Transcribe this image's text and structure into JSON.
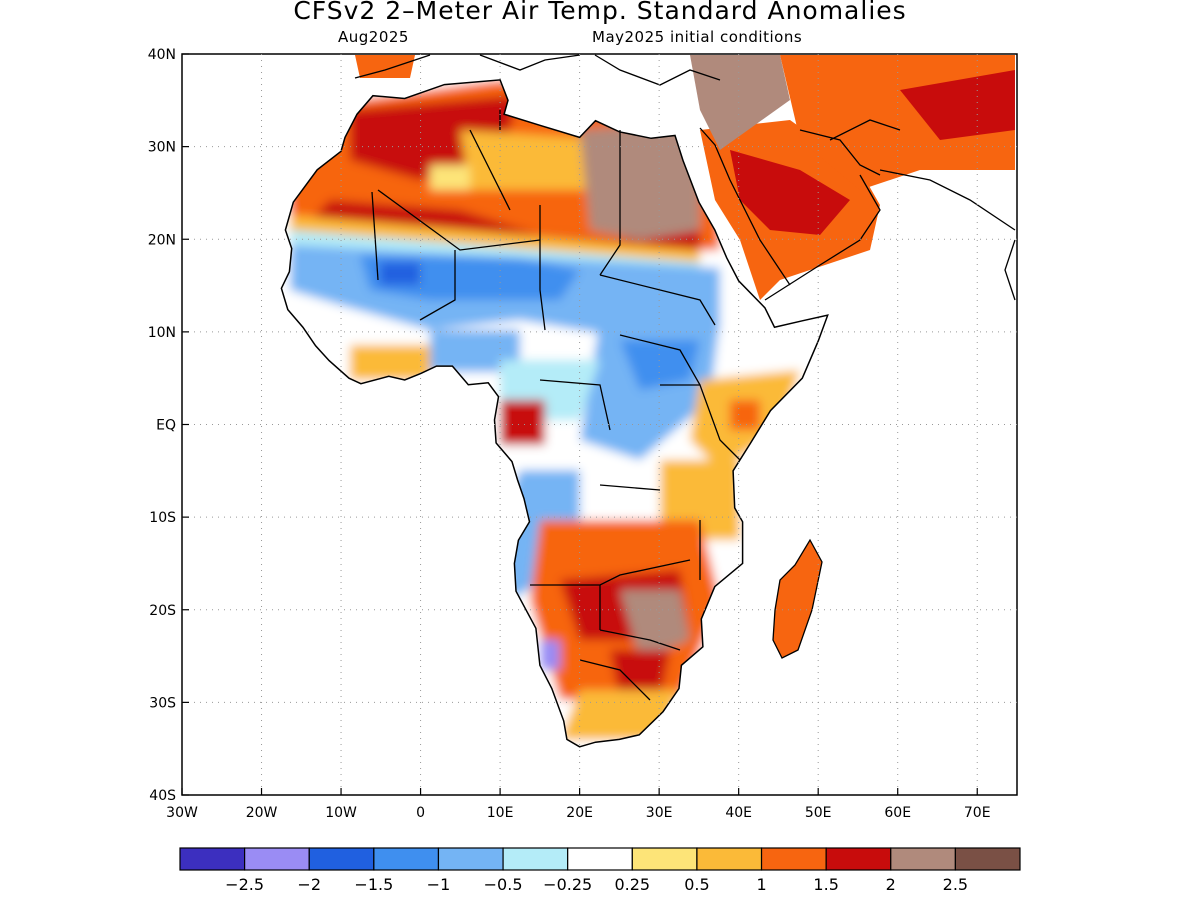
{
  "header": {
    "title": "CFSv2 2–Meter Air Temp. Standard Anomalies",
    "valid_month": "Aug2025",
    "init_conditions": "May2025 initial conditions"
  },
  "map": {
    "region": "Africa",
    "lon_range": [
      -30,
      75
    ],
    "lat_range": [
      -40,
      40
    ],
    "x_tick_labels": [
      "30W",
      "20W",
      "10W",
      "0",
      "10E",
      "20E",
      "30E",
      "40E",
      "50E",
      "60E",
      "70E"
    ],
    "y_tick_labels": [
      "40N",
      "30N",
      "20N",
      "10N",
      "EQ",
      "10S",
      "20S",
      "30S",
      "40S"
    ]
  },
  "colorbar": {
    "colors": [
      "#3c2fbf",
      "#9a8cf4",
      "#2060e0",
      "#3f8fef",
      "#74b4f4",
      "#b4ecf8",
      "#ffffff",
      "#fde478",
      "#fbba38",
      "#f76510",
      "#c80c0c",
      "#b08a7c",
      "#7a5045"
    ],
    "labels": [
      "−2.5",
      "−2",
      "−1.5",
      "−1",
      "−0.5",
      "−0.25",
      "0.25",
      "0.5",
      "1",
      "1.5",
      "2",
      "2.5"
    ]
  },
  "anomaly_regions": [
    {
      "area": "Sahara and Maghreb",
      "category": "1 to 2"
    },
    {
      "area": "Central Sahara (Libya/Egypt/Sudan)",
      "category": "above 2"
    },
    {
      "area": "Arabian Peninsula",
      "category": "1.5 to 2"
    },
    {
      "area": "Sahel and West Africa",
      "category": "-1.5 to -0.5"
    },
    {
      "area": "Central and East Africa",
      "category": "-1 to -0.25"
    },
    {
      "area": "Southern Africa interior",
      "category": "1 to 2.5"
    },
    {
      "area": "Madagascar",
      "category": "0.5 to 1.5"
    }
  ]
}
